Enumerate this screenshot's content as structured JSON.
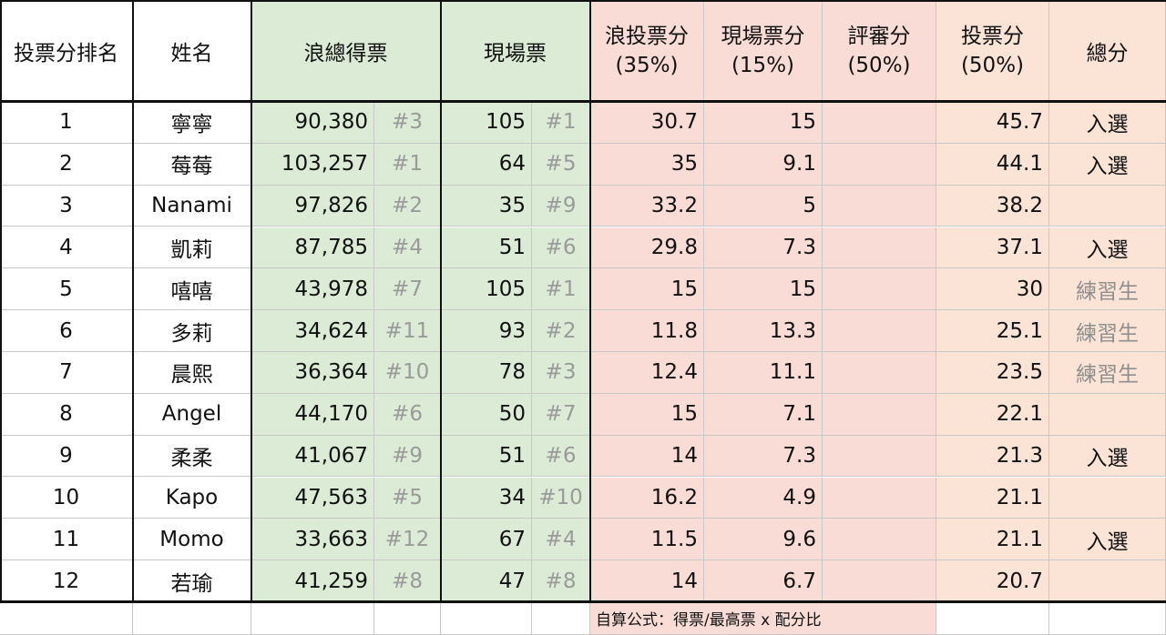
{
  "header": {
    "rank": "投票分排名",
    "name": "姓名",
    "votes": "浪總得票",
    "live": "現場票",
    "score35": [
      "浪投票分",
      "(35%)"
    ],
    "score15": [
      "現場票分",
      "(15%)"
    ],
    "judges": [
      "評審分",
      "(50%)"
    ],
    "score50": [
      "投票分",
      "(50%)"
    ],
    "total": "總分"
  },
  "rows": [
    {
      "rank": "1",
      "name": "寧寧",
      "votes": "90,380",
      "votes_rank": "#3",
      "live": "105",
      "live_rank": "#1",
      "score35": "30.7",
      "score15": "15",
      "score50": "45.7",
      "result": "入選",
      "result_color": "#111111"
    },
    {
      "rank": "2",
      "name": "莓莓",
      "votes": "103,257",
      "votes_rank": "#1",
      "live": "64",
      "live_rank": "#5",
      "score35": "35",
      "score15": "9.1",
      "score50": "44.1",
      "result": "入選",
      "result_color": "#111111"
    },
    {
      "rank": "3",
      "name": "Nanami",
      "votes": "97,826",
      "votes_rank": "#2",
      "live": "35",
      "live_rank": "#9",
      "score35": "33.2",
      "score15": "5",
      "score50": "38.2"
    },
    {
      "rank": "4",
      "name": "凱莉",
      "votes": "87,785",
      "votes_rank": "#4",
      "live": "51",
      "live_rank": "#6",
      "score35": "29.8",
      "score15": "7.3",
      "score50": "37.1",
      "result": "入選",
      "result_color": "#111111"
    },
    {
      "rank": "5",
      "name": "嘻嘻",
      "votes": "43,978",
      "votes_rank": "#7",
      "live": "105",
      "live_rank": "#1",
      "score35": "15",
      "score15": "15",
      "score50": "30",
      "result": "練習生",
      "result_color": "#8f8f8f"
    },
    {
      "rank": "6",
      "name": "多莉",
      "votes": "34,624",
      "votes_rank": "#11",
      "live": "93",
      "live_rank": "#2",
      "score35": "11.8",
      "score15": "13.3",
      "score50": "25.1",
      "result": "練習生",
      "result_color": "#8f8f8f"
    },
    {
      "rank": "7",
      "name": "晨熙",
      "votes": "36,364",
      "votes_rank": "#10",
      "live": "78",
      "live_rank": "#3",
      "score35": "12.4",
      "score15": "11.1",
      "score50": "23.5",
      "result": "練習生",
      "result_color": "#8f8f8f"
    },
    {
      "rank": "8",
      "name": "Angel",
      "votes": "44,170",
      "votes_rank": "#6",
      "live": "50",
      "live_rank": "#7",
      "score35": "15",
      "score15": "7.1",
      "score50": "22.1"
    },
    {
      "rank": "9",
      "name": "柔柔",
      "votes": "41,067",
      "votes_rank": "#9",
      "live": "51",
      "live_rank": "#6",
      "score35": "14",
      "score15": "7.3",
      "score50": "21.3",
      "result": "入選",
      "result_color": "#111111"
    },
    {
      "rank": "10",
      "name": "Kapo",
      "votes": "47,563",
      "votes_rank": "#5",
      "live": "34",
      "live_rank": "#10",
      "score35": "16.2",
      "score15": "4.9",
      "score50": "21.1"
    },
    {
      "rank": "11",
      "name": "Momo",
      "votes": "33,663",
      "votes_rank": "#12",
      "live": "67",
      "live_rank": "#4",
      "score35": "11.5",
      "score15": "9.6",
      "score50": "21.1",
      "result": "入選",
      "result_color": "#111111"
    },
    {
      "rank": "12",
      "name": "若瑜",
      "votes": "41,259",
      "votes_rank": "#8",
      "live": "47",
      "live_rank": "#8",
      "score35": "14",
      "score15": "6.7",
      "score50": "20.7"
    }
  ],
  "footnote": "自算公式：得票/最高票 x 配分比"
}
